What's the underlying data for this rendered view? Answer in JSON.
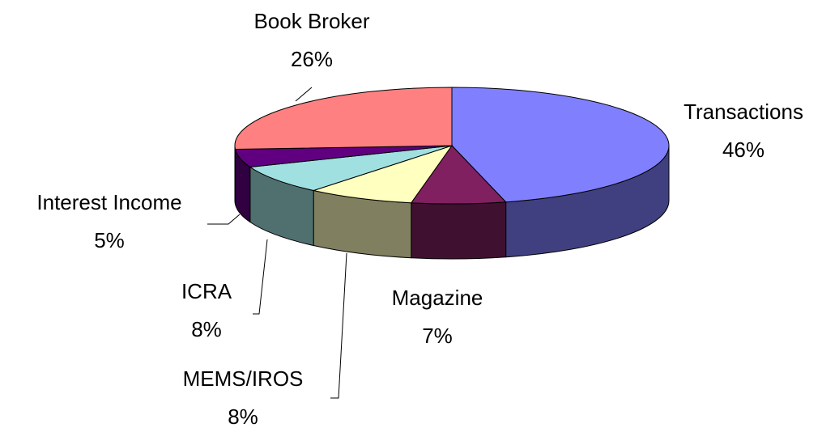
{
  "chart_data": {
    "type": "pie",
    "categories": [
      "Transactions",
      "Magazine",
      "MEMS/IROS",
      "ICRA",
      "Interest Income",
      "Book Broker"
    ],
    "values": [
      46,
      7,
      8,
      8,
      5,
      26
    ],
    "value_labels": [
      "46%",
      "7%",
      "8%",
      "8%",
      "5%",
      "26%"
    ],
    "colors": [
      "#8080ff",
      "#802060",
      "#ffffc0",
      "#a0e0e0",
      "#600080",
      "#ff8080"
    ]
  }
}
